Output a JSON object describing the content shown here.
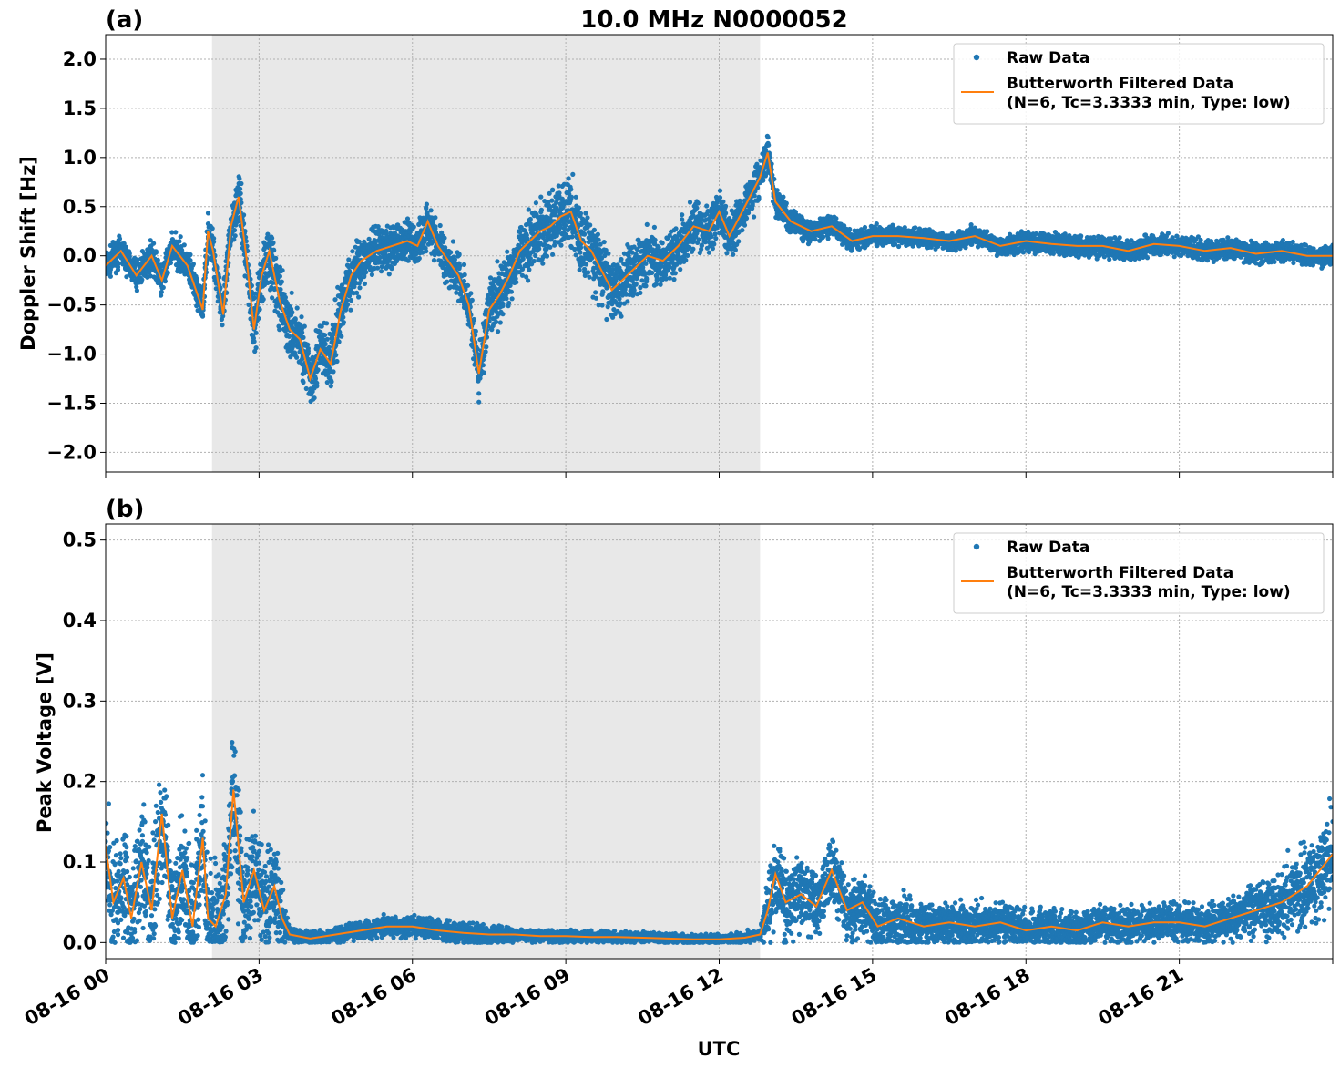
{
  "figure": {
    "title": "10.0 MHz N0000052",
    "xlabel": "UTC",
    "x_ticks": [
      {
        "hour": 0,
        "label": "08-16 00"
      },
      {
        "hour": 3,
        "label": "08-16 03"
      },
      {
        "hour": 6,
        "label": "08-16 06"
      },
      {
        "hour": 9,
        "label": "08-16 09"
      },
      {
        "hour": 12,
        "label": "08-16 12"
      },
      {
        "hour": 15,
        "label": "08-16 15"
      },
      {
        "hour": 18,
        "label": "08-16 18"
      },
      {
        "hour": 21,
        "label": "08-16 21"
      }
    ],
    "shaded_interval_hours": [
      2.08,
      12.8
    ],
    "colors": {
      "raw": "#1f77b4",
      "filtered": "#ff7f0e",
      "shade": "#e8e8e8",
      "grid": "#b0b0b0"
    }
  },
  "legend": {
    "raw_label": "Raw Data",
    "filtered_label_line1": "Butterworth Filtered Data",
    "filtered_label_line2": "(N=6, Tc=3.3333 min, Type: low)"
  },
  "chart_data": [
    {
      "type": "scatter",
      "panel_label": "(a)",
      "ylabel": "Doppler Shift [Hz]",
      "xlim": [
        0,
        24
      ],
      "ylim": [
        -2.2,
        2.25
      ],
      "yticks": [
        {
          "value": 2.0,
          "label": "2.0"
        },
        {
          "value": 1.5,
          "label": "1.5"
        },
        {
          "value": 1.0,
          "label": "1.0"
        },
        {
          "value": 0.5,
          "label": "0.5"
        },
        {
          "value": 0.0,
          "label": "0.0"
        },
        {
          "value": -0.5,
          "label": "−0.5"
        },
        {
          "value": -1.0,
          "label": "−1.0"
        },
        {
          "value": -1.5,
          "label": "−1.5"
        },
        {
          "value": -2.0,
          "label": "−2.0"
        }
      ],
      "grid": true,
      "legend_position": "top-right",
      "series": [
        {
          "name": "Butterworth Filtered Data",
          "x": [
            0,
            0.3,
            0.6,
            0.9,
            1.1,
            1.3,
            1.6,
            1.9,
            2.0,
            2.1,
            2.3,
            2.45,
            2.6,
            2.75,
            2.9,
            3.05,
            3.2,
            3.4,
            3.6,
            3.8,
            4.0,
            4.2,
            4.4,
            4.6,
            4.8,
            5.0,
            5.3,
            5.6,
            5.9,
            6.1,
            6.3,
            6.5,
            6.7,
            6.9,
            7.1,
            7.3,
            7.5,
            7.7,
            7.9,
            8.1,
            8.3,
            8.5,
            8.7,
            8.9,
            9.1,
            9.3,
            9.5,
            9.7,
            9.9,
            10.1,
            10.3,
            10.6,
            10.9,
            11.2,
            11.5,
            11.8,
            12.0,
            12.2,
            12.4,
            12.6,
            12.8,
            12.95,
            13.1,
            13.4,
            13.8,
            14.2,
            14.6,
            15.0,
            15.5,
            16.0,
            16.5,
            17.0,
            17.5,
            18.0,
            18.5,
            19.0,
            19.5,
            20.0,
            20.5,
            21.0,
            21.5,
            22.0,
            22.5,
            23.0,
            23.5,
            24.0
          ],
          "y": [
            -0.1,
            0.05,
            -0.2,
            0.0,
            -0.25,
            0.1,
            -0.1,
            -0.55,
            0.25,
            0.05,
            -0.6,
            0.3,
            0.6,
            0.0,
            -0.75,
            -0.2,
            0.05,
            -0.45,
            -0.75,
            -0.85,
            -1.25,
            -0.95,
            -1.1,
            -0.55,
            -0.2,
            -0.05,
            0.05,
            0.1,
            0.15,
            0.1,
            0.35,
            0.1,
            -0.05,
            -0.2,
            -0.5,
            -1.2,
            -0.55,
            -0.4,
            -0.2,
            0.05,
            0.15,
            0.25,
            0.3,
            0.4,
            0.45,
            0.15,
            0.05,
            -0.15,
            -0.35,
            -0.25,
            -0.15,
            0.0,
            -0.05,
            0.1,
            0.3,
            0.25,
            0.45,
            0.2,
            0.4,
            0.6,
            0.8,
            1.05,
            0.55,
            0.35,
            0.25,
            0.3,
            0.15,
            0.2,
            0.2,
            0.18,
            0.15,
            0.2,
            0.1,
            0.15,
            0.12,
            0.1,
            0.1,
            0.05,
            0.12,
            0.1,
            0.05,
            0.08,
            0.02,
            0.05,
            0.0,
            0.0
          ]
        },
        {
          "name": "Raw Data",
          "spread_envelope_x": [
            0,
            2,
            2.5,
            3,
            3.5,
            4,
            4.5,
            5,
            6,
            7,
            7.5,
            8,
            9,
            10,
            11,
            12,
            12.8,
            13,
            14,
            16,
            18,
            20,
            22,
            24
          ],
          "spread_envelope_y": [
            0.2,
            0.25,
            0.35,
            0.45,
            0.45,
            0.45,
            0.45,
            0.35,
            0.3,
            0.35,
            0.45,
            0.4,
            0.5,
            0.45,
            0.35,
            0.35,
            0.3,
            0.2,
            0.15,
            0.12,
            0.15,
            0.14,
            0.14,
            0.15
          ]
        }
      ]
    },
    {
      "type": "scatter",
      "panel_label": "(b)",
      "ylabel": "Peak Voltage [V]",
      "xlim": [
        0,
        24
      ],
      "ylim": [
        -0.02,
        0.52
      ],
      "yticks": [
        {
          "value": 0.5,
          "label": "0.5"
        },
        {
          "value": 0.4,
          "label": "0.4"
        },
        {
          "value": 0.3,
          "label": "0.3"
        },
        {
          "value": 0.2,
          "label": "0.2"
        },
        {
          "value": 0.1,
          "label": "0.1"
        },
        {
          "value": 0.0,
          "label": "0.0"
        }
      ],
      "grid": true,
      "legend_position": "top-right",
      "series": [
        {
          "name": "Butterworth Filtered Data",
          "x": [
            0,
            0.15,
            0.35,
            0.5,
            0.7,
            0.9,
            1.1,
            1.3,
            1.5,
            1.7,
            1.9,
            2.0,
            2.15,
            2.35,
            2.5,
            2.7,
            2.9,
            3.1,
            3.3,
            3.45,
            3.6,
            4.0,
            4.5,
            5.0,
            5.5,
            6.0,
            6.5,
            7.0,
            7.5,
            8.0,
            8.5,
            9.0,
            9.5,
            10.0,
            10.5,
            11.0,
            11.5,
            12.0,
            12.5,
            12.8,
            12.95,
            13.1,
            13.3,
            13.6,
            13.9,
            14.2,
            14.5,
            14.8,
            15.1,
            15.5,
            16.0,
            16.5,
            17.0,
            17.5,
            18.0,
            18.5,
            19.0,
            19.5,
            20.0,
            20.5,
            21.0,
            21.5,
            22.0,
            22.5,
            23.0,
            23.5,
            24.0
          ],
          "y": [
            0.12,
            0.05,
            0.08,
            0.03,
            0.1,
            0.04,
            0.16,
            0.03,
            0.09,
            0.02,
            0.13,
            0.03,
            0.02,
            0.06,
            0.19,
            0.05,
            0.09,
            0.04,
            0.07,
            0.03,
            0.01,
            0.005,
            0.01,
            0.015,
            0.02,
            0.02,
            0.015,
            0.012,
            0.01,
            0.01,
            0.008,
            0.008,
            0.007,
            0.007,
            0.006,
            0.005,
            0.004,
            0.004,
            0.006,
            0.01,
            0.04,
            0.085,
            0.05,
            0.06,
            0.045,
            0.09,
            0.04,
            0.05,
            0.02,
            0.03,
            0.02,
            0.025,
            0.02,
            0.025,
            0.015,
            0.02,
            0.015,
            0.025,
            0.02,
            0.025,
            0.025,
            0.02,
            0.03,
            0.04,
            0.05,
            0.07,
            0.11
          ]
        },
        {
          "name": "Raw Data",
          "spread_envelope_x": [
            0,
            1,
            2,
            2.5,
            3,
            3.4,
            3.6,
            5,
            6,
            8,
            10,
            12,
            12.8,
            13,
            14,
            15,
            16,
            18,
            20,
            22,
            23,
            24
          ],
          "spread_envelope_y": [
            0.09,
            0.11,
            0.1,
            0.12,
            0.09,
            0.08,
            0.01,
            0.015,
            0.02,
            0.012,
            0.01,
            0.008,
            0.01,
            0.07,
            0.06,
            0.05,
            0.04,
            0.035,
            0.03,
            0.035,
            0.06,
            0.09
          ]
        }
      ]
    }
  ]
}
